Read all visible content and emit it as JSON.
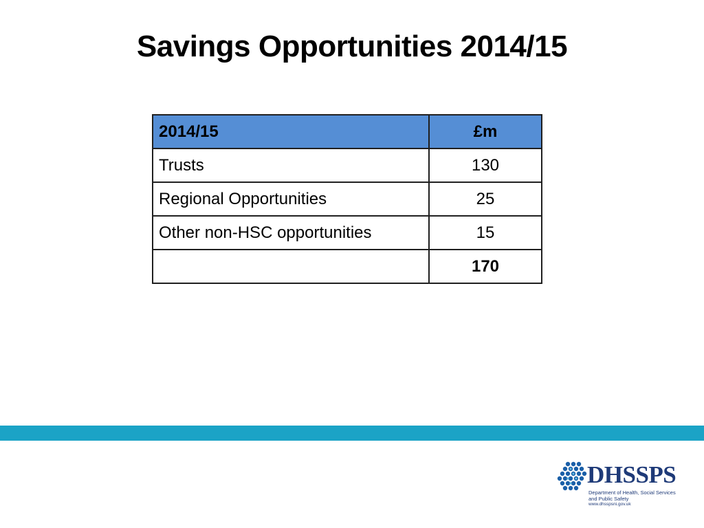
{
  "slide": {
    "title": "Savings Opportunities 2014/15"
  },
  "table": {
    "header": {
      "label": "2014/15",
      "value": "£m"
    },
    "rows": [
      {
        "label": "Trusts",
        "value": "130"
      },
      {
        "label": "Regional Opportunities",
        "value": "25"
      },
      {
        "label": "Other non-HSC opportunities",
        "value": "15"
      }
    ],
    "total": {
      "label": "",
      "value": "170"
    }
  },
  "colors": {
    "header_fill": "#558ed5",
    "footer_band": "#1ba3c6",
    "logo_text": "#1e3a78",
    "logo_mark": "#1a5fa8"
  },
  "logo": {
    "name": "DHSSPS",
    "department": "Department of Health, Social Services and Public Safety",
    "url": "www.dhsspsni.gov.uk",
    "icon": "hexagon-cluster-icon"
  }
}
